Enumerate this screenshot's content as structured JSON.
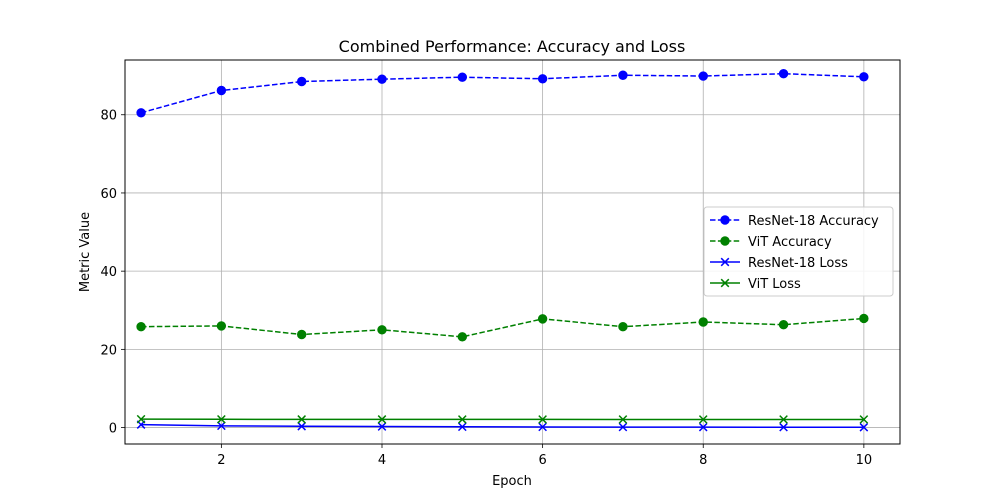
{
  "chart_data": {
    "type": "line",
    "title": "Combined Performance: Accuracy and Loss",
    "xlabel": "Epoch",
    "ylabel": "Metric Value",
    "x": [
      1,
      2,
      3,
      4,
      5,
      6,
      7,
      8,
      9,
      10
    ],
    "xlim": [
      0.8,
      10.45
    ],
    "ylim": [
      -4.2,
      94
    ],
    "xticks": [
      2,
      4,
      6,
      8,
      10
    ],
    "yticks": [
      0,
      20,
      40,
      60,
      80
    ],
    "grid": true,
    "legend_position": "center-right",
    "series": [
      {
        "name": "ResNet-18 Accuracy",
        "color": "#0000ff",
        "linestyle": "dashed",
        "marker": "circle",
        "values": [
          80.5,
          86.2,
          88.5,
          89.1,
          89.6,
          89.2,
          90.1,
          89.9,
          90.5,
          89.7
        ]
      },
      {
        "name": "ViT Accuracy",
        "color": "#008000",
        "linestyle": "dashed",
        "marker": "circle",
        "values": [
          25.8,
          26.0,
          23.8,
          25.0,
          23.2,
          27.8,
          25.8,
          27.0,
          26.3,
          27.9
        ]
      },
      {
        "name": "ResNet-18 Loss",
        "color": "#0000ff",
        "linestyle": "solid",
        "marker": "x",
        "values": [
          0.75,
          0.45,
          0.33,
          0.26,
          0.2,
          0.16,
          0.13,
          0.11,
          0.09,
          0.08
        ]
      },
      {
        "name": "ViT Loss",
        "color": "#008000",
        "linestyle": "solid",
        "marker": "x",
        "values": [
          2.15,
          2.12,
          2.1,
          2.1,
          2.09,
          2.09,
          2.08,
          2.08,
          2.08,
          2.08
        ]
      }
    ]
  }
}
